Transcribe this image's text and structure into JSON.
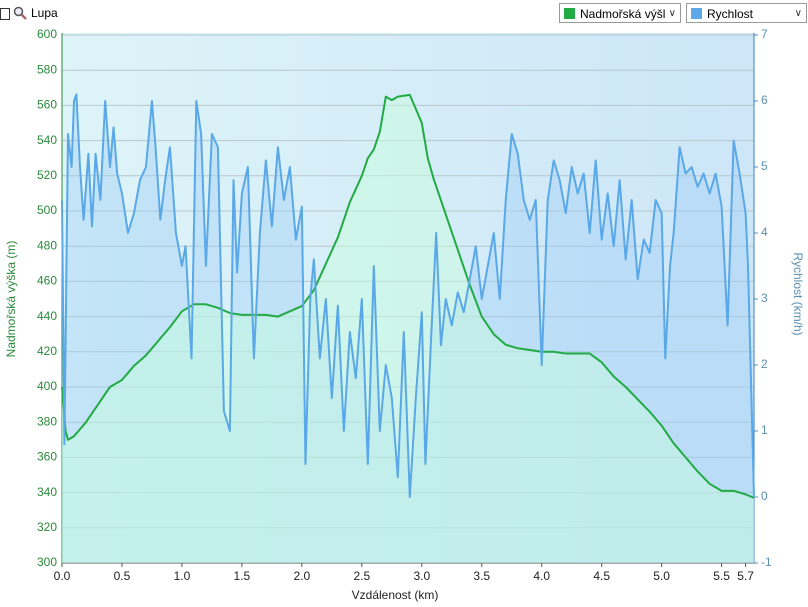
{
  "ui": {
    "zoom_label": "Lupa"
  },
  "chart_data": {
    "type": "line",
    "x_label": "Vzdálenost  (km)",
    "y_label": "Nadmořská výška (m)",
    "y2_label": "Rychlost (km/h)",
    "xlim": [
      0,
      5.77
    ],
    "xticks": [
      {
        "value": 0,
        "label": "0.0"
      },
      0.5,
      {
        "value": 1,
        "label": "1.0"
      },
      1.5,
      {
        "value": 2,
        "label": "2.0"
      },
      2.5,
      {
        "value": 3,
        "label": "3.0"
      },
      3.5,
      {
        "value": 4,
        "label": "4.0"
      },
      4.5,
      {
        "value": 5,
        "label": "5.0"
      },
      5.5,
      5.7
    ],
    "ylim": [
      300,
      600
    ],
    "yticks": [
      300,
      320,
      340,
      360,
      380,
      400,
      420,
      440,
      460,
      480,
      500,
      520,
      540,
      560,
      580,
      600
    ],
    "y2lim": [
      -1,
      7
    ],
    "y2ticks": [
      -1,
      0,
      1,
      2,
      3,
      4,
      5,
      6,
      7
    ],
    "grid": true,
    "series": [
      {
        "name": "Nadmořská výšl",
        "color": "#22aa44",
        "axis": "y",
        "x": [
          0,
          0.03,
          0.05,
          0.1,
          0.2,
          0.3,
          0.4,
          0.5,
          0.6,
          0.7,
          0.8,
          0.9,
          1.0,
          1.1,
          1.2,
          1.3,
          1.4,
          1.5,
          1.6,
          1.7,
          1.8,
          1.9,
          2.0,
          2.1,
          2.2,
          2.3,
          2.4,
          2.5,
          2.55,
          2.6,
          2.65,
          2.7,
          2.75,
          2.8,
          2.9,
          2.95,
          3.0,
          3.05,
          3.1,
          3.2,
          3.3,
          3.4,
          3.5,
          3.6,
          3.7,
          3.8,
          3.9,
          4.0,
          4.1,
          4.2,
          4.3,
          4.4,
          4.5,
          4.6,
          4.7,
          4.8,
          4.9,
          5.0,
          5.1,
          5.2,
          5.3,
          5.4,
          5.5,
          5.6,
          5.7,
          5.77
        ],
        "values": [
          400,
          375,
          370,
          372,
          380,
          390,
          400,
          404,
          412,
          418,
          426,
          434,
          443,
          447,
          447,
          445,
          442,
          441,
          441,
          441,
          440,
          443,
          446,
          455,
          470,
          485,
          505,
          520,
          530,
          535,
          545,
          565,
          563,
          565,
          566,
          558,
          550,
          530,
          518,
          498,
          478,
          458,
          440,
          430,
          424,
          422,
          421,
          420,
          420,
          419,
          419,
          419,
          414,
          406,
          400,
          393,
          386,
          378,
          368,
          360,
          352,
          345,
          341,
          341,
          339,
          337
        ]
      },
      {
        "name": "Rychlost",
        "color": "#5aa8e8",
        "axis": "y2",
        "x": [
          0,
          0.02,
          0.05,
          0.08,
          0.1,
          0.12,
          0.15,
          0.18,
          0.22,
          0.25,
          0.28,
          0.32,
          0.36,
          0.4,
          0.43,
          0.46,
          0.5,
          0.55,
          0.6,
          0.65,
          0.7,
          0.75,
          0.78,
          0.82,
          0.86,
          0.9,
          0.95,
          1.0,
          1.03,
          1.08,
          1.12,
          1.16,
          1.2,
          1.25,
          1.3,
          1.35,
          1.4,
          1.43,
          1.46,
          1.5,
          1.55,
          1.6,
          1.65,
          1.7,
          1.75,
          1.8,
          1.85,
          1.9,
          1.95,
          2.0,
          2.03,
          2.07,
          2.1,
          2.15,
          2.2,
          2.25,
          2.3,
          2.35,
          2.4,
          2.45,
          2.5,
          2.55,
          2.6,
          2.65,
          2.7,
          2.75,
          2.8,
          2.85,
          2.9,
          2.95,
          3.0,
          3.03,
          3.08,
          3.12,
          3.16,
          3.2,
          3.25,
          3.3,
          3.35,
          3.4,
          3.45,
          3.5,
          3.55,
          3.6,
          3.65,
          3.7,
          3.75,
          3.8,
          3.85,
          3.9,
          3.95,
          4.0,
          4.05,
          4.1,
          4.15,
          4.2,
          4.25,
          4.3,
          4.35,
          4.4,
          4.45,
          4.5,
          4.55,
          4.6,
          4.65,
          4.7,
          4.75,
          4.8,
          4.85,
          4.9,
          4.95,
          5.0,
          5.03,
          5.07,
          5.1,
          5.15,
          5.2,
          5.25,
          5.3,
          5.35,
          5.4,
          5.45,
          5.5,
          5.55,
          5.6,
          5.65,
          5.7,
          5.72,
          5.77
        ],
        "values": [
          4.5,
          0.8,
          5.5,
          5.0,
          6.0,
          6.1,
          5.0,
          4.2,
          5.2,
          4.1,
          5.2,
          4.5,
          6.0,
          5.0,
          5.6,
          4.9,
          4.6,
          4.0,
          4.3,
          4.8,
          5.0,
          6.0,
          5.3,
          4.2,
          4.8,
          5.3,
          4.0,
          3.5,
          3.8,
          2.1,
          6.0,
          5.5,
          3.5,
          5.5,
          5.3,
          1.3,
          1.0,
          4.8,
          3.4,
          4.6,
          5.0,
          2.1,
          4.0,
          5.1,
          4.1,
          5.3,
          4.5,
          5.0,
          3.9,
          4.4,
          0.5,
          3.0,
          3.6,
          2.1,
          3.0,
          1.5,
          2.9,
          1.0,
          2.5,
          1.8,
          3.0,
          0.5,
          3.5,
          1.0,
          2.0,
          1.5,
          0.3,
          2.5,
          0.0,
          1.5,
          2.8,
          0.5,
          2.5,
          4.0,
          2.3,
          3.0,
          2.6,
          3.1,
          2.8,
          3.3,
          3.8,
          3.0,
          3.5,
          4.0,
          3.0,
          4.5,
          5.5,
          5.2,
          4.5,
          4.2,
          4.5,
          2.0,
          4.5,
          5.1,
          4.8,
          4.3,
          5.0,
          4.6,
          4.9,
          4.0,
          5.1,
          3.9,
          4.6,
          3.8,
          4.8,
          3.6,
          4.5,
          3.3,
          3.9,
          3.7,
          4.5,
          4.3,
          2.1,
          3.5,
          4.0,
          5.3,
          4.9,
          5.0,
          4.7,
          4.9,
          4.6,
          4.9,
          4.4,
          2.6,
          5.4,
          4.9,
          4.3,
          3.5,
          0.0
        ]
      }
    ]
  }
}
